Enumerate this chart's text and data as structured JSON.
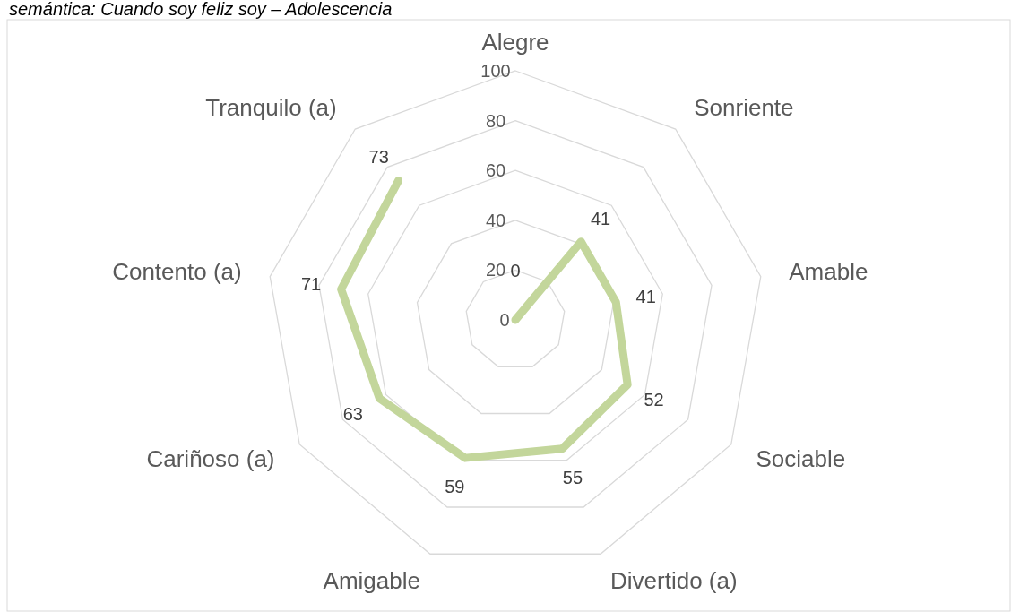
{
  "chart_data": {
    "type": "radar",
    "title": "semántica: Cuando soy feliz soy – Adolescencia",
    "categories": [
      "Alegre",
      "Sonriente",
      "Amable",
      "Sociable",
      "Divertido (a)",
      "Amigable",
      "Cariñoso (a)",
      "Contento (a)",
      "Tranquilo (a)"
    ],
    "series": [
      {
        "color": "#c3d69b",
        "values": [
          0,
          41,
          41,
          52,
          55,
          59,
          63,
          71,
          73
        ]
      }
    ],
    "ylim": [
      0,
      100
    ],
    "yticks": [
      0,
      20,
      40,
      60,
      80,
      100
    ],
    "data_labels": true,
    "grid": true
  }
}
